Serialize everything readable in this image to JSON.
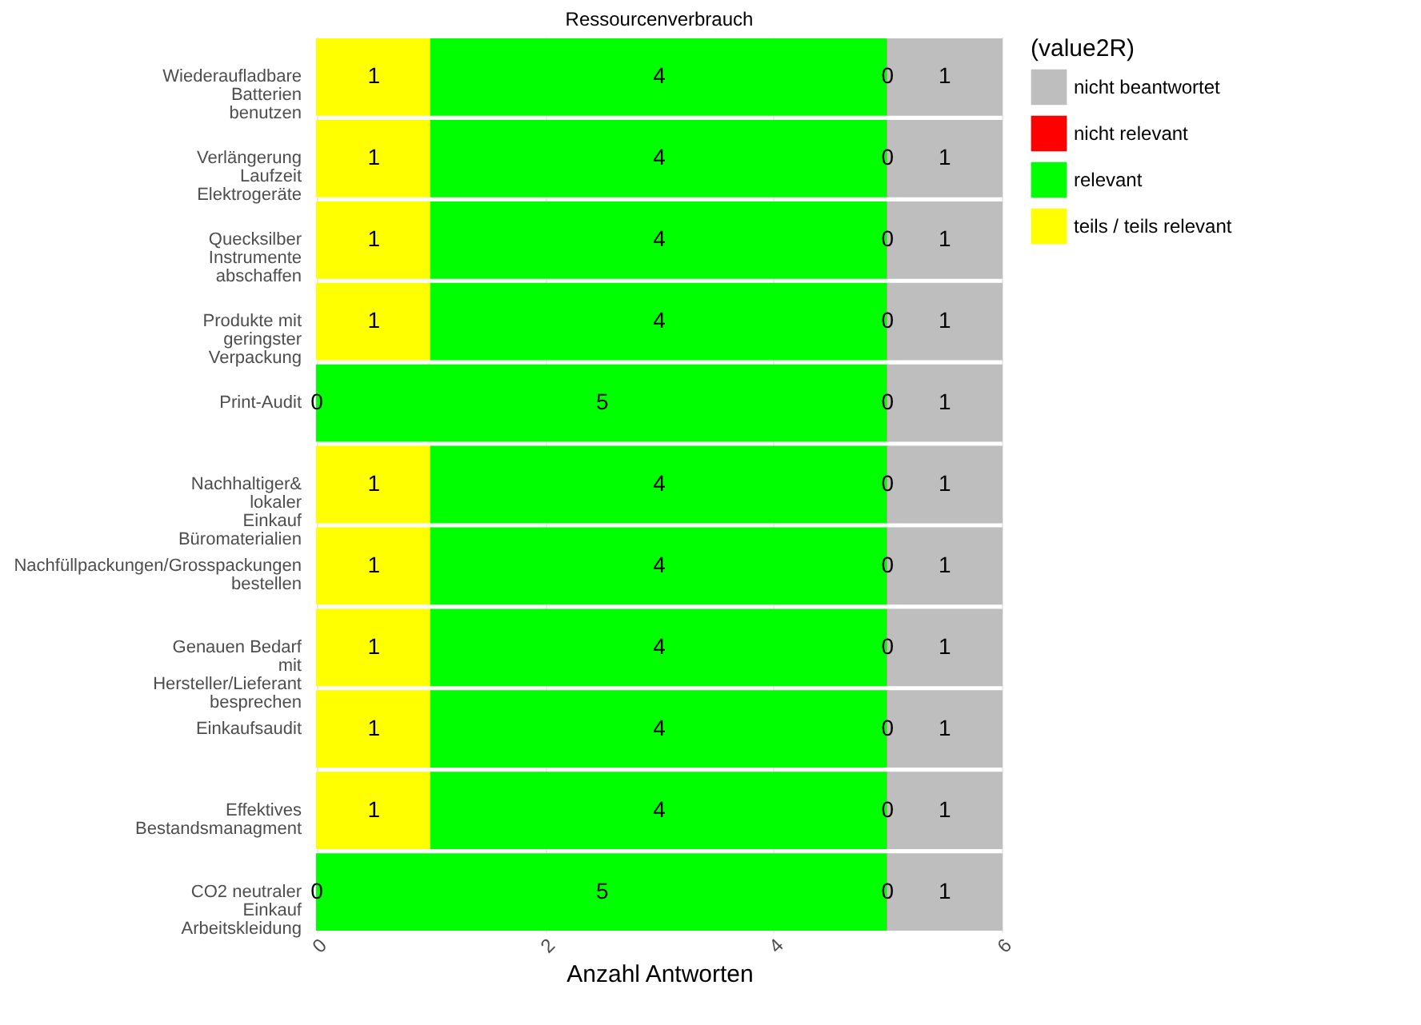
{
  "chart_data": {
    "type": "bar",
    "orientation": "horizontal",
    "stacked": true,
    "title": "Ressourcenverbrauch",
    "xlabel": "Anzahl Antworten",
    "legend_title": "(value2R)",
    "categories": [
      "Wiederaufladbare\nBatterien\nbenutzen",
      "Verlängerung\nLaufzeit\nElektrogeräte",
      "Quecksilber\nInstrumente\nabschaffen",
      "Produkte mit\ngeringster\nVerpackung",
      "Print-Audit",
      "Nachhaltiger&\nlokaler\nEinkauf\nBüromaterialien",
      "Nachfüllpackungen/Grosspackungen\nbestellen",
      "Genauen Bedarf\nmit\nHersteller/Lieferant\nbesprechen",
      "Einkaufsaudit",
      "Effektives\nBestandsmanagment",
      "CO2 neutraler\nEinkauf\nArbeitskleidung"
    ],
    "series": [
      {
        "name": "teils / teils relevant",
        "color": "#ffff00",
        "values": [
          1,
          1,
          1,
          1,
          0,
          1,
          1,
          1,
          1,
          1,
          0
        ]
      },
      {
        "name": "relevant",
        "color": "#00ff00",
        "values": [
          4,
          4,
          4,
          4,
          5,
          4,
          4,
          4,
          4,
          4,
          5
        ]
      },
      {
        "name": "nicht relevant",
        "color": "#ff0000",
        "values": [
          0,
          0,
          0,
          0,
          0,
          0,
          0,
          0,
          0,
          0,
          0
        ]
      },
      {
        "name": "nicht beantwortet",
        "color": "#bebebe",
        "values": [
          1,
          1,
          1,
          1,
          1,
          1,
          1,
          1,
          1,
          1,
          1
        ]
      }
    ],
    "xlim": [
      0,
      6
    ],
    "xticks": [
      0,
      2,
      4,
      6
    ],
    "grid": true,
    "legend": "right",
    "data_labels": true
  }
}
